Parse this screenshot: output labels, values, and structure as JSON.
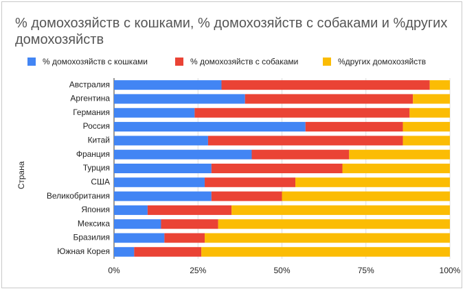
{
  "chart_data": {
    "type": "stacked_bar_horizontal",
    "title": "% домохозяйств с кошками, % домохозяйств с собаками и %других домохозяйств",
    "y_axis_label": "Страна",
    "categories": [
      "Австралия",
      "Аргентина",
      "Германия",
      "Россия",
      "Китай",
      "Франция",
      "Турция",
      "США",
      "Великобритания",
      "Япония",
      "Мексика",
      "Бразилия",
      "Южная Корея"
    ],
    "series": [
      {
        "name": "% домохозяйств с кошками",
        "color": "#4285f4",
        "values": [
          32,
          39,
          24,
          57,
          28,
          41,
          29,
          27,
          29,
          10,
          14,
          15,
          6
        ]
      },
      {
        "name": "% домохозяйств с собаками",
        "color": "#ea4335",
        "values": [
          62,
          50,
          64,
          29,
          58,
          29,
          39,
          27,
          21,
          25,
          17,
          12,
          20
        ]
      },
      {
        "name": "%других домохозяйств",
        "color": "#fbbc04",
        "values": [
          6,
          11,
          12,
          14,
          14,
          30,
          32,
          46,
          50,
          65,
          69,
          73,
          74
        ]
      }
    ],
    "xlim": [
      0,
      100
    ],
    "xticks": [
      {
        "value": 0,
        "label": "0%"
      },
      {
        "value": 25,
        "label": "25%"
      },
      {
        "value": 50,
        "label": "50%"
      },
      {
        "value": 75,
        "label": "75%"
      },
      {
        "value": 100,
        "label": "100%"
      }
    ],
    "grid": true,
    "legend_position": "top"
  }
}
